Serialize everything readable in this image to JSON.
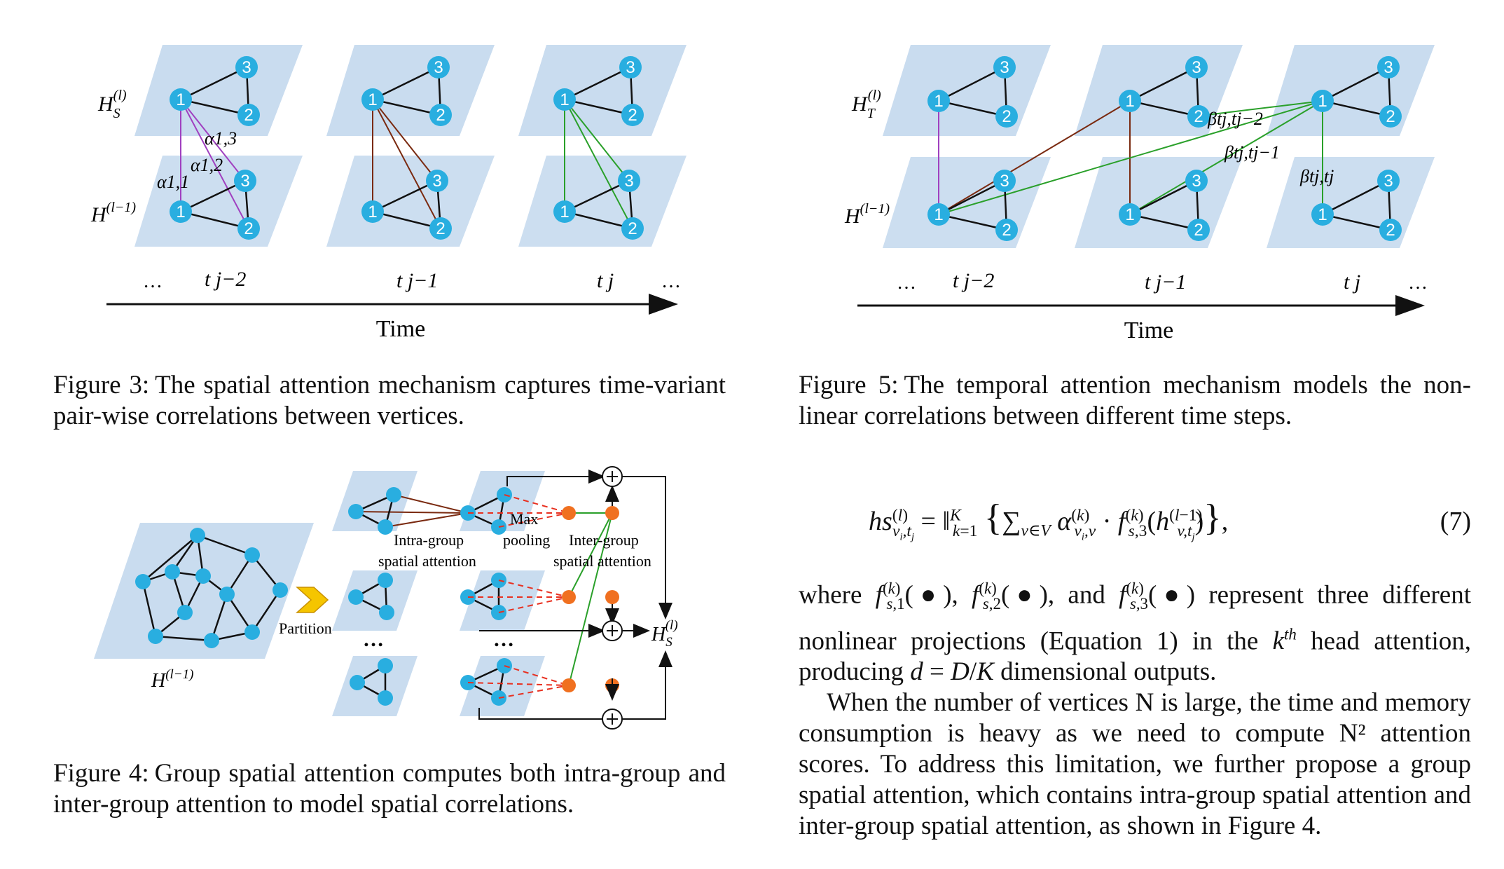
{
  "colors": {
    "plane": "#c9dcef",
    "node": "#29aee0",
    "magenta": "#a040c0",
    "brown": "#7a2a10",
    "green": "#2aa02a",
    "orange": "#f07020",
    "red_dashed": "#e83020"
  },
  "fig3": {
    "label_top": "H_S^(l)",
    "label_bottom": "H^(l−1)",
    "alpha_13": "α1,3",
    "alpha_12": "α1,2",
    "alpha_11": "α1,1",
    "time_labels": [
      "t j−2",
      "t j−1",
      "t j"
    ],
    "ellipsis": "…",
    "axis_label": "Time",
    "caption_label": "Figure 3:",
    "caption_text": "The spatial attention mechanism captures time-variant pair-wise correlations between vertices."
  },
  "fig5": {
    "label_top": "H_T^(l)",
    "label_bottom": "H^(l−1)",
    "beta_labels": [
      "βtj,tj−2",
      "βtj,tj−1",
      "βtj,tj"
    ],
    "time_labels": [
      "t j−2",
      "t j−1",
      "t j"
    ],
    "ellipsis": "…",
    "axis_label": "Time",
    "caption_label": "Figure 5:",
    "caption_text": "The temporal attention mechanism models the non-linear correlations between different time steps."
  },
  "fig4": {
    "input_label": "H^(l−1)",
    "partition_label": "Partition",
    "intra_label_1": "Intra-group",
    "intra_label_2": "spatial attention",
    "max_label_1": "Max",
    "max_label_2": "pooling",
    "inter_label_1": "Inter-group",
    "inter_label_2": "spatial attention",
    "output_label": "H_S^(l)",
    "ellipsis": "…",
    "caption_label": "Figure 4:",
    "caption_text": "Group spatial attention computes both intra-group and inter-group attention to model spatial correlations."
  },
  "equation": {
    "number": "(7)"
  },
  "body": {
    "p1_a": "where",
    "p1_b": "represent three different nonlinear projections (Equation 1) in the",
    "p1_c": "head attention, producing",
    "p1_d": "dimensional outputs.",
    "p2": "When the number of vertices N is large, the time and memory consumption is heavy as we need to compute N² attention scores. To address this limitation, we further propose a group spatial attention, which contains intra-group spatial attention and inter-group spatial attention, as shown in Figure 4."
  }
}
